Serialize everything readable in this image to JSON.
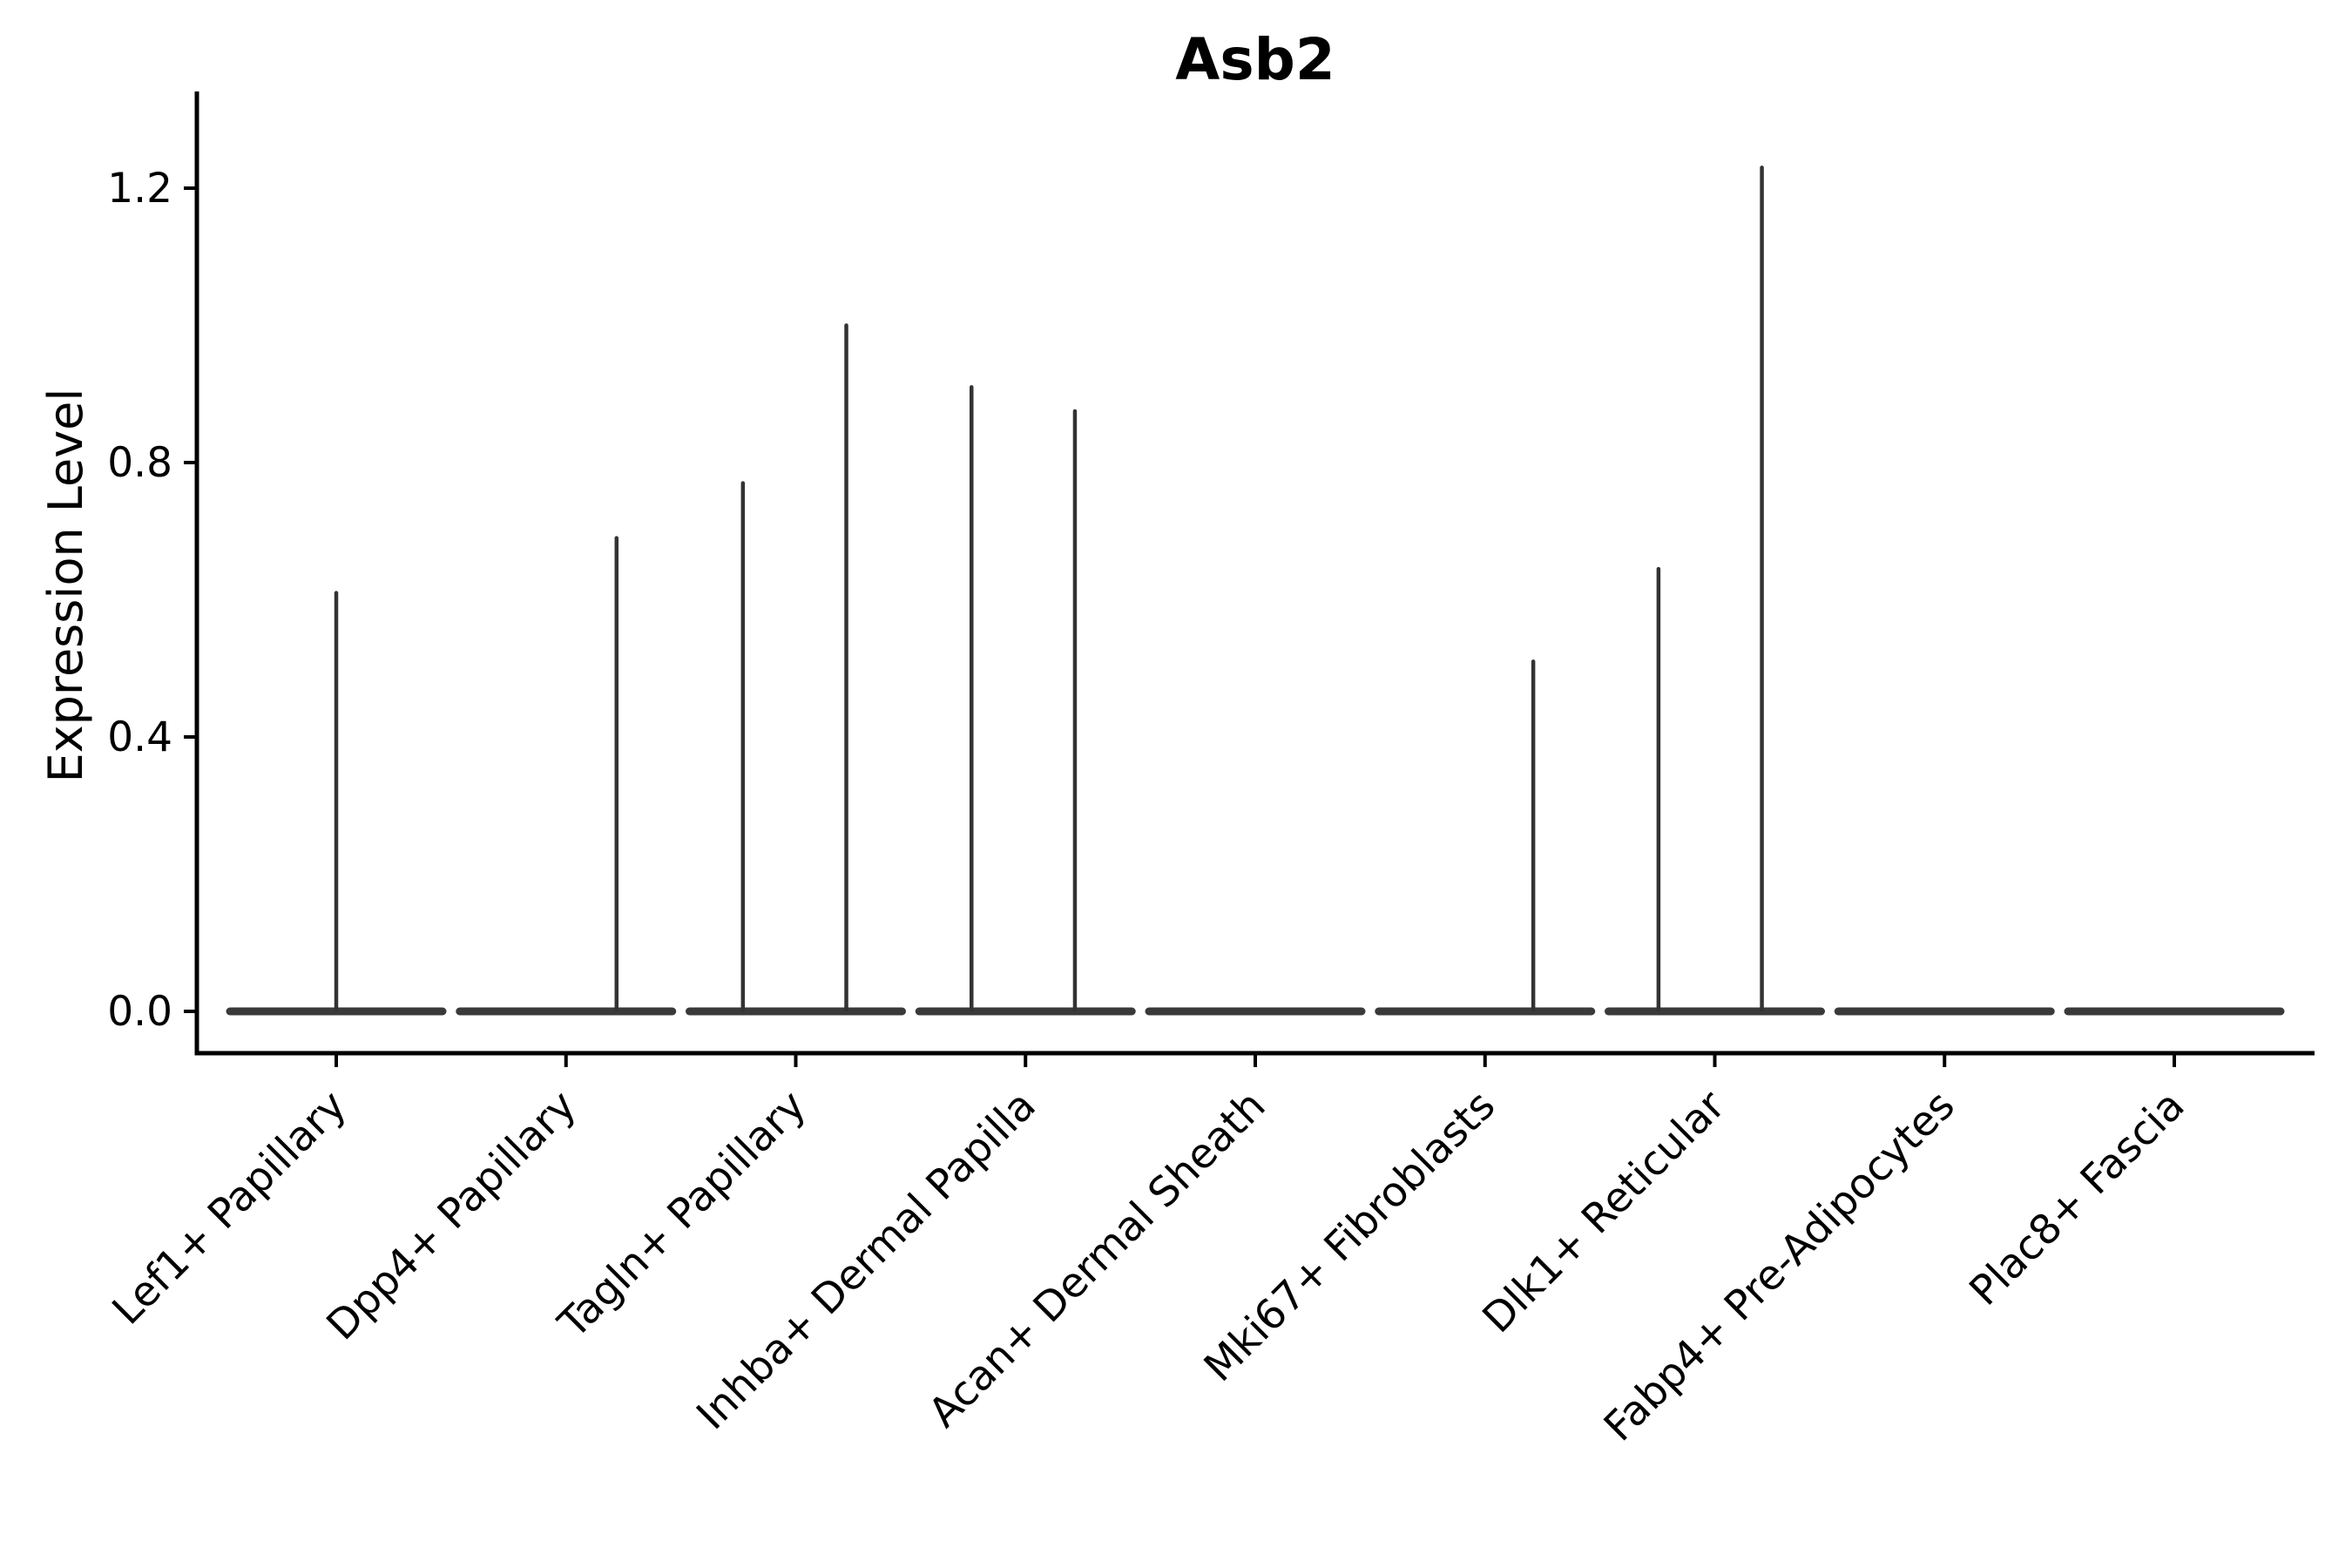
{
  "title": "Asb2",
  "chart_data": {
    "type": "violin",
    "title": "Asb2",
    "ylabel": "Expression Level",
    "xlabel": "",
    "y_ticks": [
      0.0,
      0.4,
      0.8,
      1.2
    ],
    "ylim": [
      -0.06,
      1.34
    ],
    "grid": false,
    "legend": "none",
    "categories": [
      "Lef1+ Papillary",
      "Dpp4+ Papillary",
      "Tagln+ Papillary",
      "Inhba+ Dermal Papilla",
      "Acan+ Dermal Sheath",
      "Mki67+ Fibroblasts",
      "Dlk1+ Reticular",
      "Fabp4+ Pre-Adipocytes",
      "Plac8+ Fascia"
    ],
    "violins": [
      {
        "label": "Lef1+ Papillary",
        "body_value": 0.0,
        "spikes": [
          {
            "offset": 0.0,
            "value": 0.61
          }
        ]
      },
      {
        "label": "Dpp4+ Papillary",
        "body_value": 0.0,
        "spikes": [
          {
            "offset": 0.22,
            "value": 0.69
          }
        ]
      },
      {
        "label": "Tagln+ Papillary",
        "body_value": 0.0,
        "spikes": [
          {
            "offset": -0.23,
            "value": 0.77
          },
          {
            "offset": 0.22,
            "value": 1.0
          }
        ]
      },
      {
        "label": "Inhba+ Dermal Papilla",
        "body_value": 0.0,
        "spikes": [
          {
            "offset": -0.235,
            "value": 0.91
          },
          {
            "offset": 0.215,
            "value": 0.875
          }
        ]
      },
      {
        "label": "Acan+ Dermal Sheath",
        "body_value": 0.0,
        "spikes": []
      },
      {
        "label": "Mki67+ Fibroblasts",
        "body_value": 0.0,
        "spikes": [
          {
            "offset": 0.21,
            "value": 0.51
          }
        ]
      },
      {
        "label": "Dlk1+ Reticular",
        "body_value": 0.0,
        "spikes": [
          {
            "offset": -0.245,
            "value": 0.645
          },
          {
            "offset": 0.205,
            "value": 1.23
          }
        ]
      },
      {
        "label": "Fabp4+ Pre-Adipocytes",
        "body_value": 0.0,
        "spikes": []
      },
      {
        "label": "Plac8+ Fascia",
        "body_value": 0.0,
        "spikes": []
      }
    ],
    "colors": {
      "violin_body": "#3a3a3a",
      "spike": "#333333",
      "axis": "#000000",
      "text": "#000000",
      "background": "#ffffff"
    }
  }
}
